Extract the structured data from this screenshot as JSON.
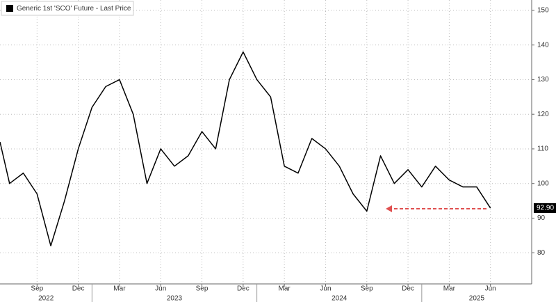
{
  "chart_data": {
    "type": "line",
    "legend": "Generic 1st 'SCO' Future - Last Price",
    "x": [
      "2022-06",
      "2022-07",
      "2022-08",
      "2022-09",
      "2022-10",
      "2022-11",
      "2022-12",
      "2023-01",
      "2023-02",
      "2023-03",
      "2023-04",
      "2023-05",
      "2023-06",
      "2023-07",
      "2023-08",
      "2023-09",
      "2023-10",
      "2023-11",
      "2023-12",
      "2024-01",
      "2024-02",
      "2024-03",
      "2024-04",
      "2024-05",
      "2024-06",
      "2024-07",
      "2024-08",
      "2024-09",
      "2024-10",
      "2024-11",
      "2024-12",
      "2025-01",
      "2025-02",
      "2025-03",
      "2025-04",
      "2025-05",
      "2025-06"
    ],
    "series": [
      {
        "name": "Generic 1st 'SCO' Future - Last Price",
        "color": "#000000",
        "values": [
          112,
          100,
          103,
          97,
          82,
          95,
          110,
          122,
          128,
          130,
          120,
          100,
          110,
          105,
          108,
          115,
          110,
          130,
          138,
          130,
          125,
          105,
          103,
          113,
          110,
          105,
          97,
          92,
          108,
          100,
          104,
          99,
          105,
          101,
          99,
          99,
          92.9
        ],
        "value_labels": {
          "36": "92.90"
        }
      }
    ],
    "xlim": [
      "2022-06",
      "2025-09"
    ],
    "xticks": [
      {
        "value": "2022-09",
        "label": "Sep"
      },
      {
        "value": "2022-12",
        "label": "Dec"
      },
      {
        "value": "2023-03",
        "label": "Mar"
      },
      {
        "value": "2023-06",
        "label": "Jun"
      },
      {
        "value": "2023-09",
        "label": "Sep"
      },
      {
        "value": "2023-12",
        "label": "Dec"
      },
      {
        "value": "2024-03",
        "label": "Mar"
      },
      {
        "value": "2024-06",
        "label": "Jun"
      },
      {
        "value": "2024-09",
        "label": "Sep"
      },
      {
        "value": "2024-12",
        "label": "Dec"
      },
      {
        "value": "2025-03",
        "label": "Mar"
      },
      {
        "value": "2025-06",
        "label": "Jun"
      }
    ],
    "years": [
      "2022",
      "2023",
      "2024",
      "2025"
    ],
    "ylim": [
      71,
      153
    ],
    "yticks": [
      80,
      90,
      100,
      110,
      120,
      130,
      140,
      150
    ],
    "grid": true
  }
}
